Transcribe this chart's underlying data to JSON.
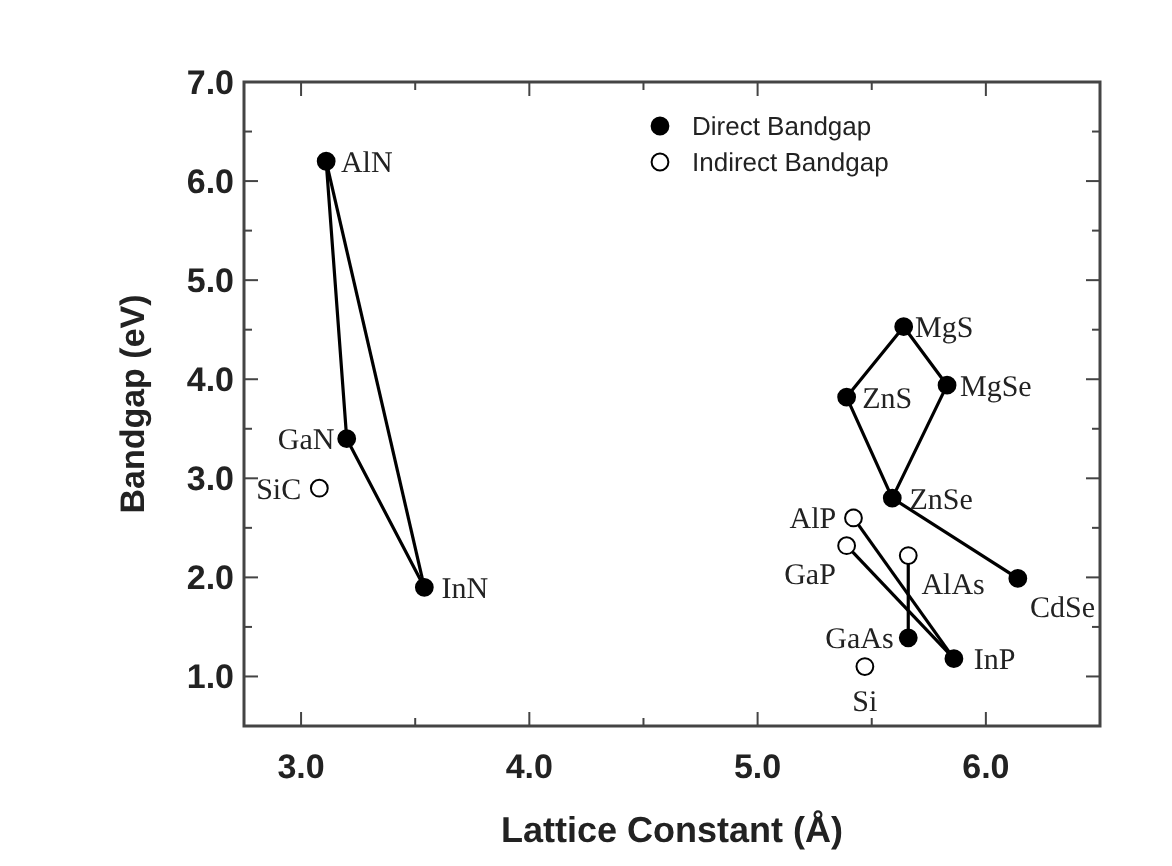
{
  "chart_data": {
    "type": "scatter",
    "xlabel": "Lattice Constant (Å)",
    "ylabel": "Bandgap (eV)",
    "xlim": [
      2.75,
      6.5
    ],
    "ylim": [
      0.5,
      7.0
    ],
    "xticks": [
      {
        "value": 3,
        "label": "3.0"
      },
      {
        "value": 3.5,
        "label": null
      },
      {
        "value": 4,
        "label": "4.0"
      },
      {
        "value": 4.5,
        "label": null
      },
      {
        "value": 5,
        "label": "5.0"
      },
      {
        "value": 5.5,
        "label": null
      },
      {
        "value": 6,
        "label": "6.0"
      }
    ],
    "yticks": [
      {
        "value": 1,
        "label": "1.0"
      },
      {
        "value": 1.5,
        "label": null
      },
      {
        "value": 2,
        "label": "2.0"
      },
      {
        "value": 2.5,
        "label": null
      },
      {
        "value": 3,
        "label": "3.0"
      },
      {
        "value": 3.5,
        "label": null
      },
      {
        "value": 4,
        "label": "4.0"
      },
      {
        "value": 4.5,
        "label": null
      },
      {
        "value": 5,
        "label": "5.0"
      },
      {
        "value": 5.5,
        "label": null
      },
      {
        "value": 6,
        "label": "6.0"
      },
      {
        "value": 6.5,
        "label": null
      },
      {
        "value": 7,
        "label": "7.0"
      }
    ],
    "grid": false,
    "legend": "top right",
    "marker": "circle",
    "series": [
      {
        "type": "line",
        "color": "#000000",
        "marker": "none",
        "x": [
          3.11,
          3.2,
          3.54
        ],
        "values": [
          6.2,
          3.4,
          1.9
        ]
      },
      {
        "type": "line",
        "color": "#000000",
        "marker": "none",
        "x": [
          3.11,
          3.54
        ],
        "values": [
          6.2,
          1.9
        ]
      },
      {
        "type": "line",
        "color": "#000000",
        "marker": "none",
        "x": [
          5.39,
          5.64,
          5.83
        ],
        "values": [
          3.82,
          4.53,
          3.94
        ]
      },
      {
        "type": "line",
        "color": "#000000",
        "marker": "none",
        "x": [
          5.39,
          5.59,
          5.83
        ],
        "values": [
          3.82,
          2.8,
          3.94
        ]
      },
      {
        "type": "line",
        "color": "#000000",
        "marker": "none",
        "x": [
          5.59,
          6.14
        ],
        "values": [
          2.8,
          1.99
        ]
      },
      {
        "type": "line",
        "color": "#000000",
        "marker": "none",
        "x": [
          5.42,
          5.86
        ],
        "values": [
          2.6,
          1.18
        ]
      },
      {
        "type": "line",
        "color": "#000000",
        "marker": "none",
        "x": [
          5.39,
          5.86
        ],
        "values": [
          2.32,
          1.18
        ]
      },
      {
        "type": "line",
        "color": "#000000",
        "marker": "none",
        "x": [
          5.66,
          5.66
        ],
        "values": [
          2.22,
          1.39
        ]
      },
      {
        "name": "Direct Bandgap",
        "color": "#000000",
        "x": [
          3.11,
          3.2,
          3.54,
          5.64,
          5.39,
          5.83,
          5.59,
          6.14,
          5.66,
          5.86
        ],
        "values": [
          6.2,
          3.4,
          1.9,
          4.53,
          3.82,
          3.94,
          2.8,
          1.99,
          1.39,
          1.18
        ]
      },
      {
        "name": "Indirect Bandgap",
        "color": "#ffffff",
        "x": [
          3.08,
          5.42,
          5.39,
          5.66,
          5.47
        ],
        "values": [
          2.9,
          2.6,
          2.32,
          2.22,
          1.1
        ]
      }
    ],
    "annotations": [
      {
        "text": "AlN",
        "x": 3.11,
        "y": 6.2
      },
      {
        "text": "GaN",
        "x": 3.2,
        "y": 3.4
      },
      {
        "text": "SiC",
        "x": 3.08,
        "y": 2.9
      },
      {
        "text": "InN",
        "x": 3.54,
        "y": 1.9
      },
      {
        "text": "MgS",
        "x": 5.64,
        "y": 4.53
      },
      {
        "text": "ZnS",
        "x": 5.39,
        "y": 3.82
      },
      {
        "text": "MgSe",
        "x": 5.83,
        "y": 3.94
      },
      {
        "text": "ZnSe",
        "x": 5.59,
        "y": 2.8
      },
      {
        "text": "AlP",
        "x": 5.42,
        "y": 2.6
      },
      {
        "text": "GaP",
        "x": 5.39,
        "y": 2.32
      },
      {
        "text": "AlAs",
        "x": 5.66,
        "y": 2.22
      },
      {
        "text": "CdSe",
        "x": 6.14,
        "y": 1.99
      },
      {
        "text": "GaAs",
        "x": 5.66,
        "y": 1.39
      },
      {
        "text": "Si",
        "x": 5.47,
        "y": 1.1
      },
      {
        "text": "InP",
        "x": 5.86,
        "y": 1.18
      }
    ]
  }
}
